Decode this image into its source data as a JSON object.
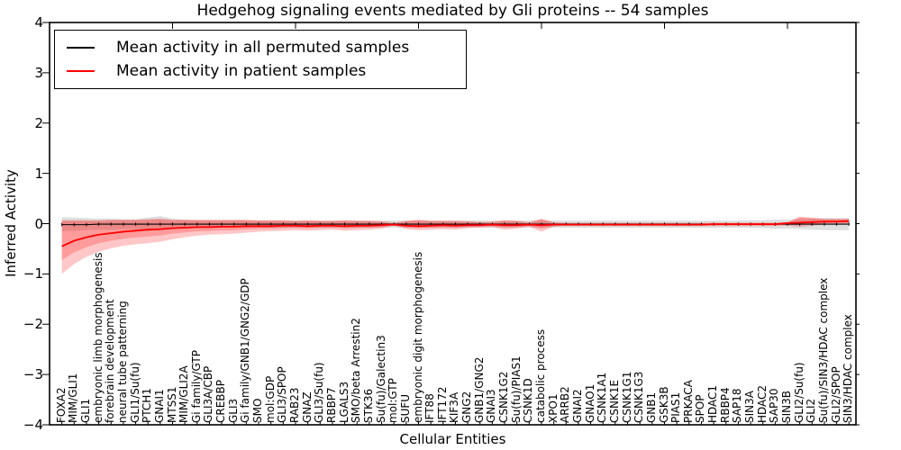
{
  "figure": {
    "background": "#ffffff"
  },
  "chart_data": {
    "type": "line",
    "title": "Hedgehog signaling events mediated by Gli proteins -- 54 samples",
    "xlabel": "Cellular Entities",
    "ylabel": "Inferred Activity",
    "ylim": [
      -4,
      4
    ],
    "grid": false,
    "legend_position": "upper left",
    "yticks": [
      {
        "v": 4,
        "label": "4"
      },
      {
        "v": 3,
        "label": "3"
      },
      {
        "v": 2,
        "label": "2"
      },
      {
        "v": 1,
        "label": "1"
      },
      {
        "v": 0,
        "label": "0"
      },
      {
        "v": -1,
        "label": "−1"
      },
      {
        "v": -2,
        "label": "−2"
      },
      {
        "v": -3,
        "label": "−3"
      },
      {
        "v": -4,
        "label": "−4"
      }
    ],
    "x_major_ticks": [
      10,
      20,
      30,
      40,
      50,
      60
    ],
    "categories": [
      "FOXA2",
      "MIM/GLI1",
      "GLI1",
      "embryonic limb morphogenesis",
      "forebrain development",
      "neural tube patterning",
      "GLI1/Su(fu)",
      "PTCH1",
      "GNAI1",
      "MTSS1",
      "MIM/GLI2A",
      "Gi family/GTP",
      "GLI3A/CBP",
      "CREBBP",
      "GLI3",
      "Gi family/GNB1/GNG2/GDP",
      "SMO",
      "mol:GDP",
      "GLI3/SPOP",
      "RAB23",
      "GNAZ",
      "GLI3/Su(fu)",
      "RBBP7",
      "LGALS3",
      "SMO/beta Arrestin2",
      "STK36",
      "Su(fu)/Galectin3",
      "mol:GTP",
      "SUFU",
      "embryonic digit morphogenesis",
      "IFT88",
      "IFT172",
      "KIF3A",
      "GNG2",
      "GNB1/GNG2",
      "GNAI3",
      "CSNK1G2",
      "Su(fu)/PIAS1",
      "CSNK1D",
      "catabolic process",
      "XPO1",
      "ARRB2",
      "GNAI2",
      "GNAO1",
      "CSNK1A1",
      "CSNK1E",
      "CSNK1G1",
      "CSNK1G3",
      "GNB1",
      "GSK3B",
      "PIAS1",
      "PRKACA",
      "SPOP",
      "HDAC1",
      "RBBP4",
      "SAP18",
      "SIN3A",
      "HDAC2",
      "SAP30",
      "SIN3B",
      "GLI2/Su(fu)",
      "GLI2",
      "Su(fu)/SIN3/HDAC complex",
      "GLI2/SPOP",
      "SIN3/HDAC complex"
    ],
    "series": [
      {
        "name": "Mean activity in all permuted samples",
        "color": "#000000",
        "band_color": "#c4c4c4",
        "values": [
          -0.02,
          -0.02,
          -0.02,
          -0.01,
          -0.01,
          -0.01,
          -0.01,
          -0.01,
          -0.01,
          -0.01,
          -0.01,
          -0.01,
          -0.01,
          -0.01,
          -0.01,
          -0.01,
          -0.01,
          -0.01,
          -0.01,
          -0.01,
          -0.01,
          -0.01,
          -0.01,
          -0.01,
          -0.01,
          -0.01,
          -0.01,
          -0.01,
          -0.01,
          -0.01,
          -0.01,
          -0.01,
          -0.01,
          -0.01,
          -0.01,
          -0.01,
          -0.01,
          -0.01,
          -0.01,
          -0.01,
          -0.01,
          -0.01,
          -0.01,
          -0.01,
          -0.01,
          -0.01,
          -0.01,
          -0.01,
          -0.01,
          -0.01,
          -0.01,
          -0.01,
          -0.01,
          -0.01,
          -0.01,
          -0.01,
          -0.01,
          -0.01,
          -0.01,
          -0.01,
          -0.01,
          -0.01,
          -0.01,
          -0.01,
          -0.01
        ],
        "band_lo": [
          -0.15,
          -0.14,
          -0.13,
          -0.12,
          -0.12,
          -0.11,
          -0.11,
          -0.12,
          -0.13,
          -0.11,
          -0.09,
          -0.08,
          -0.08,
          -0.08,
          -0.08,
          -0.08,
          -0.08,
          -0.08,
          -0.08,
          -0.08,
          -0.08,
          -0.08,
          -0.08,
          -0.08,
          -0.08,
          -0.08,
          -0.08,
          -0.08,
          -0.08,
          -0.08,
          -0.08,
          -0.08,
          -0.08,
          -0.08,
          -0.08,
          -0.08,
          -0.08,
          -0.08,
          -0.08,
          -0.09,
          -0.08,
          -0.08,
          -0.08,
          -0.08,
          -0.08,
          -0.08,
          -0.08,
          -0.08,
          -0.08,
          -0.08,
          -0.08,
          -0.08,
          -0.08,
          -0.08,
          -0.08,
          -0.08,
          -0.09,
          -0.09,
          -0.1,
          -0.1,
          -0.11,
          -0.12,
          -0.13,
          -0.13,
          -0.13
        ],
        "band_hi": [
          0.13,
          0.12,
          0.11,
          0.1,
          0.1,
          0.09,
          0.09,
          0.12,
          0.15,
          0.1,
          0.08,
          0.06,
          0.06,
          0.06,
          0.06,
          0.06,
          0.06,
          0.06,
          0.06,
          0.06,
          0.06,
          0.06,
          0.06,
          0.06,
          0.06,
          0.06,
          0.06,
          0.06,
          0.06,
          0.06,
          0.06,
          0.06,
          0.06,
          0.06,
          0.06,
          0.06,
          0.06,
          0.06,
          0.06,
          0.07,
          0.06,
          0.06,
          0.06,
          0.06,
          0.06,
          0.06,
          0.06,
          0.06,
          0.06,
          0.06,
          0.06,
          0.06,
          0.06,
          0.06,
          0.06,
          0.06,
          0.07,
          0.07,
          0.08,
          0.08,
          0.09,
          0.1,
          0.11,
          0.11,
          0.11
        ]
      },
      {
        "name": "Mean activity in patient samples",
        "color": "#ff0000",
        "band_color": "#ff0000",
        "values": [
          -0.45,
          -0.34,
          -0.27,
          -0.22,
          -0.19,
          -0.16,
          -0.14,
          -0.12,
          -0.11,
          -0.09,
          -0.08,
          -0.07,
          -0.07,
          -0.06,
          -0.06,
          -0.05,
          -0.05,
          -0.05,
          -0.04,
          -0.04,
          -0.05,
          -0.04,
          -0.04,
          -0.05,
          -0.04,
          -0.04,
          -0.03,
          -0.02,
          -0.04,
          -0.05,
          -0.04,
          -0.03,
          -0.04,
          -0.03,
          -0.03,
          -0.02,
          -0.03,
          -0.03,
          -0.02,
          -0.03,
          -0.02,
          -0.02,
          -0.02,
          -0.02,
          -0.02,
          -0.02,
          -0.02,
          -0.02,
          -0.02,
          -0.02,
          -0.02,
          -0.02,
          -0.02,
          -0.01,
          -0.01,
          -0.01,
          -0.01,
          -0.01,
          -0.01,
          0.01,
          0.02,
          0.03,
          0.04,
          0.04,
          0.05
        ],
        "band_lo": [
          -1.0,
          -0.8,
          -0.66,
          -0.56,
          -0.49,
          -0.44,
          -0.41,
          -0.39,
          -0.36,
          -0.31,
          -0.27,
          -0.24,
          -0.22,
          -0.21,
          -0.2,
          -0.18,
          -0.16,
          -0.15,
          -0.14,
          -0.13,
          -0.14,
          -0.13,
          -0.12,
          -0.14,
          -0.13,
          -0.12,
          -0.1,
          -0.04,
          -0.11,
          -0.13,
          -0.12,
          -0.11,
          -0.12,
          -0.09,
          -0.08,
          -0.07,
          -0.12,
          -0.1,
          -0.06,
          -0.16,
          -0.06,
          -0.05,
          -0.05,
          -0.05,
          -0.05,
          -0.05,
          -0.05,
          -0.05,
          -0.05,
          -0.05,
          -0.05,
          -0.05,
          -0.05,
          -0.05,
          -0.05,
          -0.05,
          -0.05,
          -0.05,
          -0.05,
          -0.04,
          -0.07,
          -0.04,
          -0.02,
          -0.01,
          -0.01
        ],
        "band_hi": [
          0.07,
          0.07,
          0.07,
          0.07,
          0.08,
          0.08,
          0.08,
          0.09,
          0.1,
          0.08,
          0.08,
          0.08,
          0.08,
          0.08,
          0.08,
          0.08,
          0.07,
          0.07,
          0.07,
          0.06,
          0.07,
          0.06,
          0.06,
          0.07,
          0.06,
          0.06,
          0.05,
          0.02,
          0.06,
          0.08,
          0.06,
          0.06,
          0.06,
          0.05,
          0.04,
          0.04,
          0.07,
          0.06,
          0.03,
          0.1,
          0.03,
          0.02,
          0.02,
          0.02,
          0.02,
          0.02,
          0.02,
          0.02,
          0.02,
          0.02,
          0.02,
          0.02,
          0.02,
          0.02,
          0.02,
          0.02,
          0.02,
          0.02,
          0.02,
          0.03,
          0.14,
          0.12,
          0.1,
          0.1,
          0.1
        ]
      }
    ]
  }
}
